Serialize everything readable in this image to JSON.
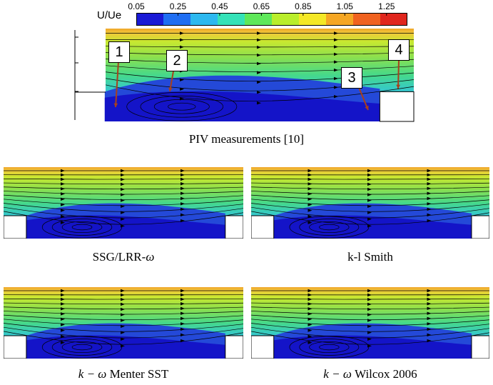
{
  "chart_data": [
    {
      "type": "heatmap",
      "subtype": "contour-with-streamlines",
      "colorbar": {
        "title": "U/Ue",
        "ticks": [
          "0.05",
          "0.25",
          "0.45",
          "0.65",
          "0.85",
          "1.05",
          "1.25"
        ],
        "range": [
          0.05,
          1.35
        ],
        "colors": [
          "#1a1ad6",
          "#1f6ef2",
          "#2db8ef",
          "#35e2b8",
          "#5fe85a",
          "#b9ee2b",
          "#f4e826",
          "#f5a623",
          "#f0621f",
          "#e0261d"
        ]
      },
      "panels": [
        {
          "id": "piv",
          "caption": "PIV measurements [10]",
          "annotations": [
            "1",
            "2",
            "3",
            "4"
          ]
        },
        {
          "id": "ssg",
          "caption_text": "SSG/LRR-",
          "caption_symbol": "ω"
        },
        {
          "id": "kl",
          "caption": "k-l Smith"
        },
        {
          "id": "menter",
          "caption_math": "k − ω",
          "caption_text": " Menter SST"
        },
        {
          "id": "wilcox",
          "caption_math": "k − ω",
          "caption_text": " Wilcox 2006"
        }
      ]
    }
  ]
}
